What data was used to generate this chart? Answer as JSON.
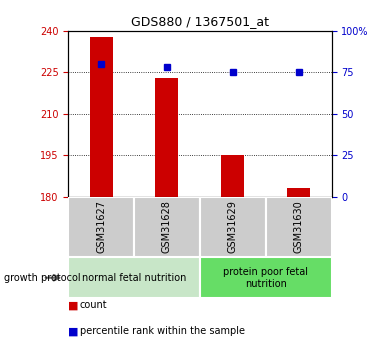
{
  "title": "GDS880 / 1367501_at",
  "samples": [
    "GSM31627",
    "GSM31628",
    "GSM31629",
    "GSM31630"
  ],
  "count_values": [
    238.0,
    223.0,
    195.0,
    183.0
  ],
  "percentile_values": [
    80,
    78,
    75,
    75
  ],
  "ylim_left": [
    180,
    240
  ],
  "ylim_right": [
    0,
    100
  ],
  "yticks_left": [
    180,
    195,
    210,
    225,
    240
  ],
  "yticks_right": [
    0,
    25,
    50,
    75,
    100
  ],
  "ytick_labels_right": [
    "0",
    "25",
    "50",
    "75",
    "100%"
  ],
  "bar_color": "#cc0000",
  "square_color": "#0000cc",
  "bar_width": 0.35,
  "baseline": 180,
  "group_labels": [
    "normal fetal nutrition",
    "protein poor fetal\nnutrition"
  ],
  "group_ranges": [
    [
      0,
      1
    ],
    [
      2,
      3
    ]
  ],
  "group_colors": [
    "#c8e6c8",
    "#66dd66"
  ],
  "sample_label_color": "#cccccc",
  "growth_protocol_label": "growth protocol",
  "legend_count_label": "count",
  "legend_percentile_label": "percentile rank within the sample",
  "title_fontsize": 9,
  "tick_fontsize": 7,
  "label_fontsize": 7,
  "legend_fontsize": 7
}
